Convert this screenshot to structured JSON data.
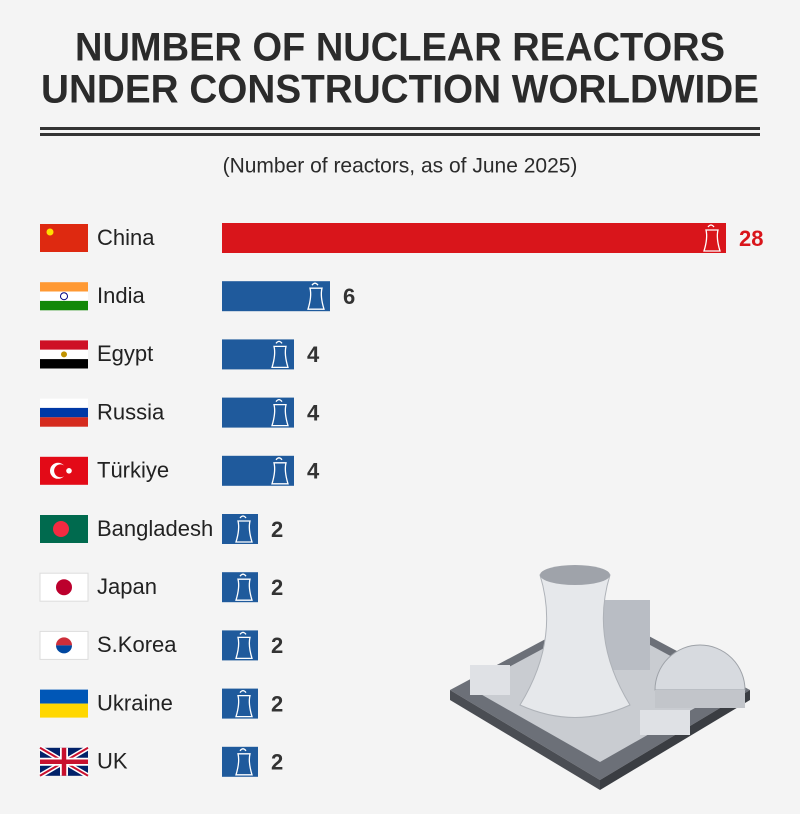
{
  "chart_data": {
    "type": "bar",
    "orientation": "horizontal",
    "title": [
      "NUMBER OF NUCLEAR REACTORS",
      "UNDER CONSTRUCTION WORLDWIDE"
    ],
    "subtitle": "(Number of reactors, as of June 2025)",
    "categories": [
      "China",
      "India",
      "Egypt",
      "Russia",
      "Türkiye",
      "Bangladesh",
      "Japan",
      "S.Korea",
      "Ukraine",
      "UK"
    ],
    "values": [
      28,
      6,
      4,
      4,
      4,
      2,
      2,
      2,
      2,
      2
    ],
    "colors": [
      "#d9151b",
      "#1f5a9c",
      "#1f5a9c",
      "#1f5a9c",
      "#1f5a9c",
      "#1f5a9c",
      "#1f5a9c",
      "#1f5a9c",
      "#1f5a9c",
      "#1f5a9c"
    ],
    "data_labels": true
  }
}
